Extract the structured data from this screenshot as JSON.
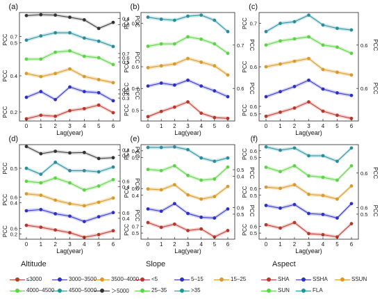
{
  "figure": {
    "x_tick_labels": [
      "0",
      "1",
      "2",
      "3",
      "4",
      "5",
      "6"
    ],
    "xlabel": "Lag(year)",
    "pcc_label": "PCC"
  },
  "colors": {
    "series": [
      "#b5382a",
      "#2e2fc7",
      "#d69a2d",
      "#5fd14a",
      "#2b8c9a",
      "#333333"
    ],
    "band": [
      "#f2c4c4",
      "#c8c8f2",
      "#f4dcae",
      "#c9f2c0",
      "#bfe3e8",
      "#d6d6d6"
    ]
  },
  "legends": [
    {
      "title": "Altitude",
      "items": [
        "≤3000",
        "3000–3500",
        "3500–4000",
        "4000–4500",
        "4500–5000",
        "＞5000"
      ]
    },
    {
      "title": "Slope",
      "items": [
        "<5",
        "5–15",
        "15–25",
        "25–35",
        ">35"
      ]
    },
    {
      "title": "Aspect",
      "items": [
        "SHA",
        "SSHA",
        "SSUN",
        "SUN",
        "FLA"
      ]
    }
  ],
  "chart_data": [
    {
      "type": "line",
      "panel_label": "(a)",
      "x": [
        0,
        1,
        2,
        3,
        4,
        5,
        6
      ],
      "left_ticks": [
        {
          "label": "0.7",
          "level": 4
        },
        {
          "label": "0.5",
          "level": 4
        },
        {
          "label": "0.4",
          "level": 2
        },
        {
          "label": "0.2",
          "level": 0
        }
      ],
      "right_ticks": [
        {
          "label": "0.4",
          "level": 5
        },
        {
          "label": "0.0",
          "level": 5
        },
        {
          "label": "0.7",
          "level": 3
        },
        {
          "label": "0.6",
          "level": 3
        },
        {
          "label": "0.5",
          "level": 3
        },
        {
          "label": "0.5",
          "level": 1
        },
        {
          "label": "0.4",
          "level": 1
        },
        {
          "label": "0.3",
          "level": 1
        }
      ],
      "series": [
        {
          "values": [
            0.22,
            0.29,
            0.27,
            0.38,
            0.42,
            0.49,
            0.34
          ]
        },
        {
          "values": [
            0.38,
            0.43,
            0.36,
            0.47,
            0.43,
            0.42,
            0.35
          ]
        },
        {
          "values": [
            0.52,
            0.5,
            0.52,
            0.55,
            0.5,
            0.48,
            0.46
          ]
        },
        {
          "values": [
            0.56,
            0.56,
            0.61,
            0.62,
            0.58,
            0.57,
            0.52
          ]
        },
        {
          "values": [
            0.61,
            0.65,
            0.68,
            0.68,
            0.63,
            0.6,
            0.55
          ]
        },
        {
          "values": [
            0.3,
            0.32,
            0.31,
            0.26,
            0.2,
            0.0,
            0.14
          ]
        }
      ]
    },
    {
      "type": "line",
      "panel_label": "(b)",
      "x": [
        0,
        1,
        2,
        3,
        4,
        5,
        6
      ],
      "left_ticks": [
        {
          "label": "0.6",
          "level": 4
        },
        {
          "label": "0.6",
          "level": 2
        },
        {
          "label": "0.7",
          "level": 1
        },
        {
          "label": "0.5",
          "level": 0
        }
      ],
      "right_ticks": [
        {
          "label": "0.7",
          "level": 3
        },
        {
          "label": "0.6",
          "level": 1
        }
      ],
      "series": [
        {
          "values": [
            0.52,
            0.58,
            0.63,
            0.69,
            0.56,
            0.51,
            0.5
          ]
        },
        {
          "values": [
            0.55,
            0.58,
            0.56,
            0.61,
            0.55,
            0.5,
            0.44
          ]
        },
        {
          "values": [
            0.59,
            0.6,
            0.61,
            0.64,
            0.62,
            0.6,
            0.55
          ]
        },
        {
          "values": [
            0.63,
            0.64,
            0.64,
            0.67,
            0.66,
            0.64,
            0.6
          ]
        },
        {
          "values": [
            0.58,
            0.56,
            0.55,
            0.59,
            0.6,
            0.55,
            0.44
          ]
        }
      ]
    },
    {
      "type": "line",
      "panel_label": "(c)",
      "x": [
        0,
        1,
        2,
        3,
        4,
        5,
        6
      ],
      "left_ticks": [
        {
          "label": "0.7",
          "level": 4
        },
        {
          "label": "0.6",
          "level": 2
        },
        {
          "label": "0.6",
          "level": 0
        },
        {
          "label": "0.5",
          "level": 0
        }
      ],
      "right_ticks": [
        {
          "label": "0.6",
          "level": 3
        },
        {
          "label": "0.6",
          "level": 1
        }
      ],
      "series": [
        {
          "values": [
            0.54,
            0.58,
            0.62,
            0.68,
            0.59,
            0.55,
            0.52
          ]
        },
        {
          "values": [
            0.52,
            0.56,
            0.6,
            0.65,
            0.58,
            0.55,
            0.53
          ]
        },
        {
          "values": [
            0.59,
            0.6,
            0.61,
            0.62,
            0.58,
            0.57,
            0.56
          ]
        },
        {
          "values": [
            0.62,
            0.64,
            0.65,
            0.66,
            0.62,
            0.61,
            0.58
          ]
        },
        {
          "values": [
            0.59,
            0.64,
            0.65,
            0.69,
            0.63,
            0.61,
            0.6
          ]
        }
      ]
    },
    {
      "type": "line",
      "panel_label": "(d)",
      "x": [
        0,
        1,
        2,
        3,
        4,
        5,
        6
      ],
      "left_ticks": [
        {
          "label": "0.5",
          "level": 4
        },
        {
          "label": "0.6",
          "level": 2
        },
        {
          "label": "0.4",
          "level": 2
        },
        {
          "label": "0.6",
          "level": 0
        },
        {
          "label": "0.2",
          "level": 0
        }
      ],
      "right_ticks": [
        {
          "label": "0.4",
          "level": 5
        },
        {
          "label": "0.0",
          "level": 5
        },
        {
          "label": "0.6",
          "level": 3
        },
        {
          "label": "0.4",
          "level": 3
        },
        {
          "label": "0.6",
          "level": 1
        },
        {
          "label": "0.4",
          "level": 1
        }
      ],
      "series": [
        {
          "values": [
            0.52,
            0.47,
            0.4,
            0.33,
            0.21,
            0.28,
            0.38
          ]
        },
        {
          "values": [
            0.55,
            0.57,
            0.5,
            0.46,
            0.37,
            0.45,
            0.52
          ]
        },
        {
          "values": [
            0.58,
            0.56,
            0.49,
            0.44,
            0.41,
            0.46,
            0.52
          ]
        },
        {
          "values": [
            0.58,
            0.56,
            0.62,
            0.56,
            0.47,
            0.52,
            0.6
          ]
        },
        {
          "values": [
            0.53,
            0.48,
            0.58,
            0.51,
            0.51,
            0.5,
            0.54
          ]
        },
        {
          "values": [
            0.4,
            0.22,
            0.28,
            0.24,
            0.25,
            0.1,
            0.12
          ]
        }
      ]
    },
    {
      "type": "line",
      "panel_label": "(e)",
      "x": [
        0,
        1,
        2,
        3,
        4,
        5,
        6
      ],
      "left_ticks": [
        {
          "label": "0.4",
          "level": 4
        },
        {
          "label": "0.2",
          "level": 4
        },
        {
          "label": "0.6",
          "level": 2
        },
        {
          "label": "0.4",
          "level": 2
        },
        {
          "label": "0.7",
          "level": 0
        },
        {
          "label": "0.5",
          "level": 0
        }
      ],
      "right_ticks": [
        {
          "label": "0.5",
          "level": 3
        },
        {
          "label": "0.4",
          "level": 3
        },
        {
          "label": "0.6",
          "level": 1
        },
        {
          "label": "0.5",
          "level": 1
        }
      ],
      "series": [
        {
          "values": [
            0.66,
            0.6,
            0.64,
            0.56,
            0.58,
            0.48,
            0.56
          ]
        },
        {
          "values": [
            0.61,
            0.58,
            0.68,
            0.55,
            0.5,
            0.49,
            0.61
          ]
        },
        {
          "values": [
            0.56,
            0.55,
            0.61,
            0.49,
            0.44,
            0.47,
            0.59
          ]
        },
        {
          "values": [
            0.53,
            0.52,
            0.56,
            0.48,
            0.44,
            0.45,
            0.55
          ]
        },
        {
          "values": [
            0.43,
            0.43,
            0.44,
            0.39,
            0.24,
            0.18,
            0.24
          ]
        }
      ]
    },
    {
      "type": "line",
      "panel_label": "(f)",
      "x": [
        0,
        1,
        2,
        3,
        4,
        5,
        6
      ],
      "left_ticks": [
        {
          "label": "0.6",
          "level": 4
        },
        {
          "label": "0.5",
          "level": 4
        },
        {
          "label": "0.6",
          "level": 2
        },
        {
          "label": "0.5",
          "level": 2
        },
        {
          "label": "0.6",
          "level": 0
        },
        {
          "label": "0.5",
          "level": 0
        }
      ],
      "right_ticks": [
        {
          "label": "0.6",
          "level": 3
        },
        {
          "label": "0.6",
          "level": 1
        },
        {
          "label": "0.5",
          "level": 1
        }
      ],
      "series": [
        {
          "values": [
            0.6,
            0.57,
            0.62,
            0.52,
            0.51,
            0.49,
            0.61
          ]
        },
        {
          "values": [
            0.6,
            0.57,
            0.61,
            0.51,
            0.5,
            0.46,
            0.62
          ]
        },
        {
          "values": [
            0.59,
            0.58,
            0.61,
            0.53,
            0.52,
            0.49,
            0.6
          ]
        },
        {
          "values": [
            0.61,
            0.58,
            0.62,
            0.55,
            0.54,
            0.52,
            0.62
          ]
        },
        {
          "values": [
            0.61,
            0.58,
            0.6,
            0.53,
            0.53,
            0.48,
            0.6
          ]
        }
      ]
    }
  ]
}
